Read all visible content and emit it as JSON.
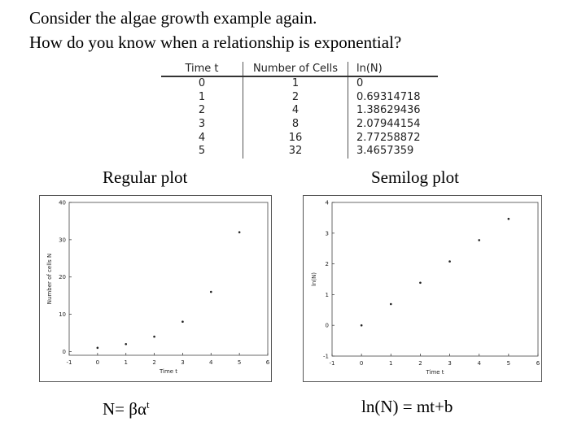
{
  "title_lines": [
    "Consider the algae growth example again.",
    "How do you know when a relationship is exponential?"
  ],
  "table": {
    "headers": [
      "Time t",
      "Number of Cells",
      "ln(N)"
    ],
    "rows": [
      [
        "0",
        "1",
        "0"
      ],
      [
        "1",
        "2",
        "0.69314718"
      ],
      [
        "2",
        "4",
        "1.38629436"
      ],
      [
        "3",
        "8",
        "2.07944154"
      ],
      [
        "4",
        "16",
        "2.77258872"
      ],
      [
        "5",
        "32",
        "3.4657359"
      ]
    ]
  },
  "labels": {
    "regular": "Regular plot",
    "semilog": "Semilog plot"
  },
  "formulas": {
    "regular_base": "N= βα",
    "regular_sup": "t",
    "semilog": "ln(N) = mt+b"
  },
  "chart_data": [
    {
      "type": "scatter",
      "title": "",
      "xlabel": "Time t",
      "ylabel": "Number of cells N",
      "xlim": [
        -1,
        6
      ],
      "ylim": [
        -1,
        40
      ],
      "xticks": [
        -1,
        0,
        1,
        2,
        3,
        4,
        5,
        6
      ],
      "yticks": [
        0,
        10,
        20,
        30,
        40
      ],
      "grid": false,
      "x": [
        0,
        1,
        2,
        3,
        4,
        5
      ],
      "y": [
        1,
        2,
        4,
        8,
        16,
        32
      ]
    },
    {
      "type": "scatter",
      "title": "",
      "xlabel": "Time t",
      "ylabel": "ln(N)",
      "xlim": [
        -1,
        6
      ],
      "ylim": [
        -1,
        4
      ],
      "xticks": [
        -1,
        0,
        1,
        2,
        3,
        4,
        5,
        6
      ],
      "yticks": [
        -1,
        0,
        1,
        2,
        3,
        4
      ],
      "grid": false,
      "x": [
        0,
        1,
        2,
        3,
        4,
        5
      ],
      "y": [
        0,
        0.69314718,
        1.38629436,
        2.07944154,
        2.77258872,
        3.4657359
      ]
    }
  ]
}
